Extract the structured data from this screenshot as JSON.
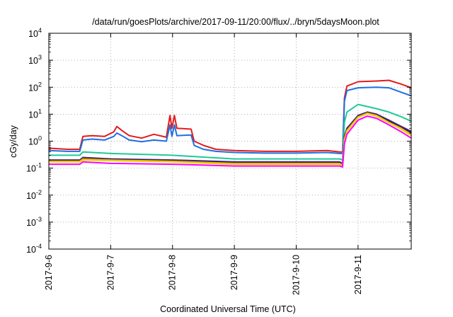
{
  "chart_data": {
    "type": "line",
    "title": "/data/run/goesPlots/archive/2017-09-11/20:00/flux/../bryn/5daysMoon.plot",
    "xlabel": "Coordinated Universal Time (UTC)",
    "ylabel": "cGy/day",
    "yscale": "log",
    "ylim": [
      0.0001,
      10000
    ],
    "xlim": [
      0,
      5.86
    ],
    "grid": true,
    "y_ticks": [
      {
        "value": 0.0001,
        "base": "10",
        "exp": "-4"
      },
      {
        "value": 0.001,
        "base": "10",
        "exp": "-3"
      },
      {
        "value": 0.01,
        "base": "10",
        "exp": "-2"
      },
      {
        "value": 0.1,
        "base": "10",
        "exp": "-1"
      },
      {
        "value": 1,
        "base": "10",
        "exp": "0"
      },
      {
        "value": 10,
        "base": "10",
        "exp": "1"
      },
      {
        "value": 100,
        "base": "10",
        "exp": "2"
      },
      {
        "value": 1000,
        "base": "10",
        "exp": "3"
      },
      {
        "value": 10000,
        "base": "10",
        "exp": "4"
      }
    ],
    "x_ticks": [
      {
        "value": 0,
        "label": "2017-9-6"
      },
      {
        "value": 1,
        "label": "2017-9-7"
      },
      {
        "value": 2,
        "label": "2017-9-8"
      },
      {
        "value": 3,
        "label": "2017-9-9"
      },
      {
        "value": 4,
        "label": "2017-9-10"
      },
      {
        "value": 5,
        "label": "2017-9-11"
      }
    ],
    "series": [
      {
        "color": "#e41a1c",
        "points": [
          [
            0,
            0.55
          ],
          [
            0.3,
            0.5
          ],
          [
            0.5,
            0.5
          ],
          [
            0.55,
            1.5
          ],
          [
            0.7,
            1.6
          ],
          [
            0.9,
            1.5
          ],
          [
            1.05,
            2.2
          ],
          [
            1.1,
            3.5
          ],
          [
            1.18,
            2.5
          ],
          [
            1.3,
            1.6
          ],
          [
            1.5,
            1.3
          ],
          [
            1.7,
            1.8
          ],
          [
            1.9,
            1.4
          ],
          [
            1.96,
            9
          ],
          [
            1.99,
            3
          ],
          [
            2.03,
            9
          ],
          [
            2.07,
            3
          ],
          [
            2.3,
            2.8
          ],
          [
            2.35,
            1
          ],
          [
            2.5,
            0.7
          ],
          [
            2.7,
            0.5
          ],
          [
            3,
            0.45
          ],
          [
            3.5,
            0.42
          ],
          [
            4,
            0.42
          ],
          [
            4.5,
            0.45
          ],
          [
            4.7,
            0.4
          ],
          [
            4.75,
            0.4
          ],
          [
            4.78,
            40
          ],
          [
            4.82,
            110
          ],
          [
            5,
            160
          ],
          [
            5.3,
            170
          ],
          [
            5.5,
            180
          ],
          [
            5.7,
            130
          ],
          [
            5.86,
            95
          ]
        ]
      },
      {
        "color": "#1f6fe0",
        "points": [
          [
            0,
            0.45
          ],
          [
            0.3,
            0.42
          ],
          [
            0.5,
            0.42
          ],
          [
            0.55,
            1.1
          ],
          [
            0.7,
            1.2
          ],
          [
            0.9,
            1.1
          ],
          [
            1.05,
            1.5
          ],
          [
            1.1,
            2.0
          ],
          [
            1.18,
            1.6
          ],
          [
            1.3,
            1.1
          ],
          [
            1.5,
            0.95
          ],
          [
            1.7,
            1.1
          ],
          [
            1.9,
            1.0
          ],
          [
            1.96,
            4
          ],
          [
            1.99,
            1.5
          ],
          [
            2.03,
            4
          ],
          [
            2.07,
            1.6
          ],
          [
            2.3,
            1.7
          ],
          [
            2.35,
            0.7
          ],
          [
            2.5,
            0.5
          ],
          [
            2.7,
            0.42
          ],
          [
            3,
            0.38
          ],
          [
            3.5,
            0.36
          ],
          [
            4,
            0.36
          ],
          [
            4.5,
            0.38
          ],
          [
            4.7,
            0.35
          ],
          [
            4.75,
            0.35
          ],
          [
            4.78,
            30
          ],
          [
            4.82,
            75
          ],
          [
            5,
            95
          ],
          [
            5.3,
            100
          ],
          [
            5.5,
            95
          ],
          [
            5.7,
            65
          ],
          [
            5.86,
            48
          ]
        ]
      },
      {
        "color": "#1fc99a",
        "points": [
          [
            0,
            0.3
          ],
          [
            0.5,
            0.3
          ],
          [
            0.55,
            0.4
          ],
          [
            1,
            0.35
          ],
          [
            2,
            0.3
          ],
          [
            3,
            0.22
          ],
          [
            4,
            0.22
          ],
          [
            4.7,
            0.22
          ],
          [
            4.75,
            0.2
          ],
          [
            4.78,
            5
          ],
          [
            4.82,
            12
          ],
          [
            5,
            23
          ],
          [
            5.3,
            16
          ],
          [
            5.5,
            12
          ],
          [
            5.7,
            8
          ],
          [
            5.86,
            5.5
          ]
        ]
      },
      {
        "color": "#5b2c83",
        "points": [
          [
            0,
            0.2
          ],
          [
            0.5,
            0.2
          ],
          [
            0.55,
            0.25
          ],
          [
            1,
            0.22
          ],
          [
            2,
            0.2
          ],
          [
            3,
            0.17
          ],
          [
            4,
            0.17
          ],
          [
            4.7,
            0.17
          ],
          [
            4.75,
            0.15
          ],
          [
            4.78,
            1.5
          ],
          [
            4.82,
            3
          ],
          [
            5,
            9
          ],
          [
            5.15,
            12
          ],
          [
            5.3,
            10
          ],
          [
            5.5,
            6
          ],
          [
            5.7,
            3.5
          ],
          [
            5.86,
            2.3
          ]
        ]
      },
      {
        "color": "#1a1a6e",
        "points": [
          [
            0,
            0.19
          ],
          [
            0.5,
            0.19
          ],
          [
            0.55,
            0.23
          ],
          [
            1,
            0.21
          ],
          [
            2,
            0.19
          ],
          [
            3,
            0.16
          ],
          [
            4,
            0.16
          ],
          [
            4.7,
            0.16
          ],
          [
            4.75,
            0.14
          ],
          [
            4.78,
            1.3
          ],
          [
            4.82,
            2.8
          ],
          [
            5,
            8.5
          ],
          [
            5.15,
            11.5
          ],
          [
            5.3,
            9.5
          ],
          [
            5.5,
            5.5
          ],
          [
            5.7,
            3.2
          ],
          [
            5.86,
            2.1
          ]
        ]
      },
      {
        "color": "#e8a317",
        "points": [
          [
            0,
            0.18
          ],
          [
            0.5,
            0.18
          ],
          [
            0.55,
            0.22
          ],
          [
            1,
            0.2
          ],
          [
            2,
            0.18
          ],
          [
            3,
            0.15
          ],
          [
            4,
            0.15
          ],
          [
            4.7,
            0.15
          ],
          [
            4.75,
            0.13
          ],
          [
            4.78,
            1.2
          ],
          [
            4.82,
            2.5
          ],
          [
            5,
            8
          ],
          [
            5.15,
            11
          ],
          [
            5.3,
            9
          ],
          [
            5.5,
            5
          ],
          [
            5.7,
            3
          ],
          [
            5.86,
            1.8
          ]
        ]
      },
      {
        "color": "#f0d000",
        "points": [
          [
            0,
            0.17
          ],
          [
            0.5,
            0.17
          ],
          [
            0.55,
            0.2
          ],
          [
            1,
            0.19
          ],
          [
            2,
            0.17
          ],
          [
            3,
            0.14
          ],
          [
            4,
            0.14
          ],
          [
            4.7,
            0.14
          ],
          [
            4.75,
            0.12
          ],
          [
            4.78,
            1.1
          ],
          [
            4.82,
            2.3
          ],
          [
            5,
            7.5
          ],
          [
            5.15,
            10.5
          ],
          [
            5.3,
            8.5
          ],
          [
            5.5,
            4.8
          ],
          [
            5.7,
            2.8
          ],
          [
            5.86,
            1.6
          ]
        ]
      },
      {
        "color": "#ff00ff",
        "points": [
          [
            0,
            0.14
          ],
          [
            0.5,
            0.14
          ],
          [
            0.55,
            0.17
          ],
          [
            1,
            0.15
          ],
          [
            2,
            0.14
          ],
          [
            3,
            0.12
          ],
          [
            4,
            0.12
          ],
          [
            4.7,
            0.12
          ],
          [
            4.75,
            0.11
          ],
          [
            4.78,
            0.8
          ],
          [
            4.82,
            1.8
          ],
          [
            5,
            6
          ],
          [
            5.15,
            8.5
          ],
          [
            5.3,
            7
          ],
          [
            5.5,
            4
          ],
          [
            5.7,
            2.2
          ],
          [
            5.86,
            1.3
          ]
        ]
      }
    ]
  }
}
